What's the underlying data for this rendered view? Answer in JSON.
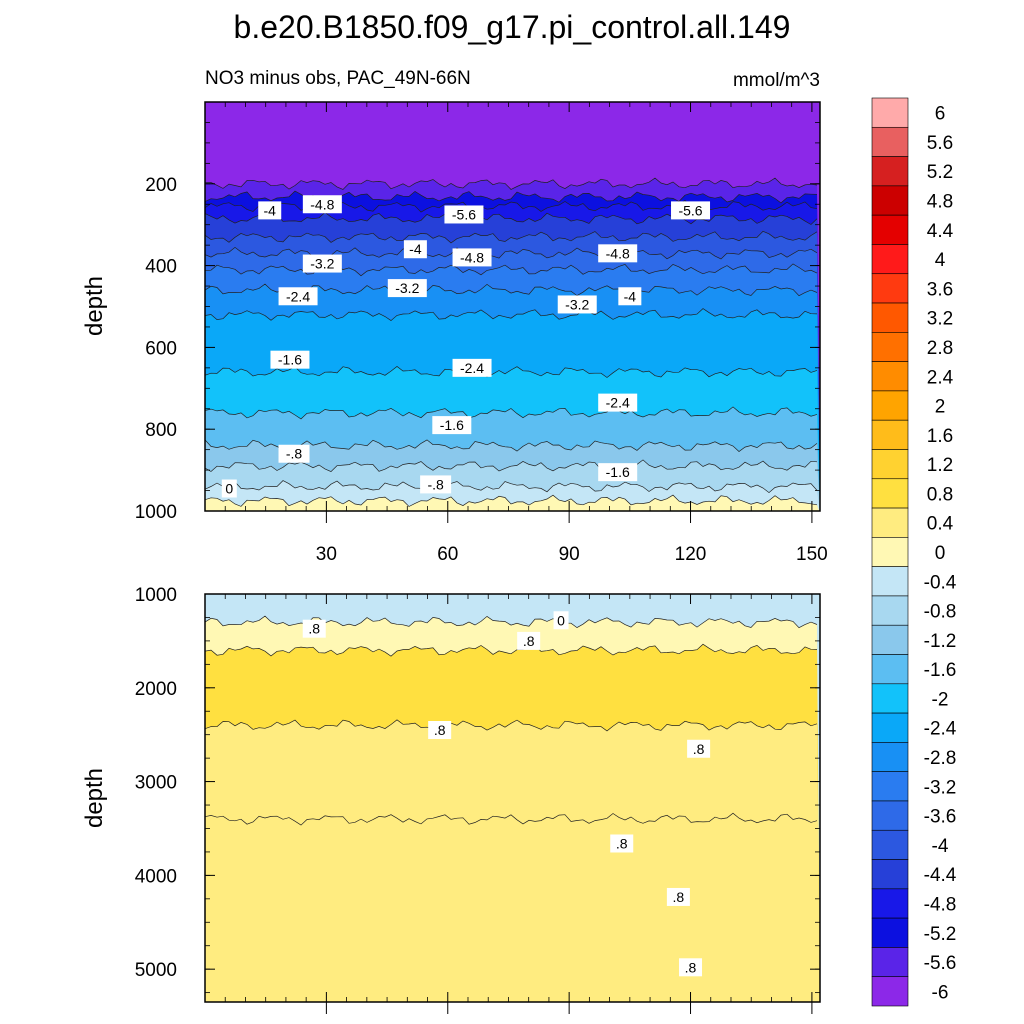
{
  "chart_data": {
    "type": "contour",
    "title": "b.e20.B1850.f09_g17.pi_control.all.149",
    "subtitle_left": "NO3 minus obs, PAC_49N-66N",
    "units": "mmol/m^3",
    "x_ticks": [
      "30",
      "60",
      "90",
      "120",
      "150"
    ],
    "xlim": [
      0,
      152
    ],
    "colorbar": {
      "labels": [
        "6",
        "5.6",
        "5.2",
        "4.8",
        "4.4",
        "4",
        "3.6",
        "3.2",
        "2.8",
        "2.4",
        "2",
        "1.6",
        "1.2",
        "0.8",
        "0.4",
        "0",
        "-0.4",
        "-0.8",
        "-1.2",
        "-1.6",
        "-2",
        "-2.4",
        "-2.8",
        "-3.2",
        "-3.6",
        "-4",
        "-4.4",
        "-4.8",
        "-5.2",
        "-5.6",
        "-6"
      ],
      "colors": [
        "#ffaaaa",
        "#e86060",
        "#d62020",
        "#cc0000",
        "#e40000",
        "#ff1a1a",
        "#ff3a10",
        "#ff5800",
        "#ff7000",
        "#ff8c00",
        "#ffa400",
        "#ffbc1a",
        "#ffd230",
        "#ffe040",
        "#ffec80",
        "#fff8b4",
        "#c4e6f6",
        "#a8d8f0",
        "#8ac8ec",
        "#5cbef2",
        "#12c2fa",
        "#0aa8f8",
        "#1890f4",
        "#2a7cf0",
        "#2e6ae8",
        "#2c58e0",
        "#2640d8",
        "#1818e8",
        "#0c10e0",
        "#5a24e8",
        "#8c28e8"
      ]
    },
    "panels": [
      {
        "name": "upper",
        "ylabel": "depth",
        "ylim": [
          0,
          1000
        ],
        "y_ticks": [
          "200",
          "400",
          "600",
          "800",
          "1000"
        ],
        "bands": [
          {
            "top": 0,
            "value": -6.0
          },
          {
            "top": 200,
            "value": -5.6
          },
          {
            "top": 232,
            "value": -5.2
          },
          {
            "top": 255,
            "value": -4.8
          },
          {
            "top": 285,
            "value": -4.4
          },
          {
            "top": 330,
            "value": -4.0
          },
          {
            "top": 370,
            "value": -3.6
          },
          {
            "top": 410,
            "value": -3.2
          },
          {
            "top": 460,
            "value": -2.8
          },
          {
            "top": 520,
            "value": -2.4
          },
          {
            "top": 660,
            "value": -2.0
          },
          {
            "top": 760,
            "value": -1.6
          },
          {
            "top": 840,
            "value": -1.2
          },
          {
            "top": 890,
            "value": -0.8
          },
          {
            "top": 940,
            "value": -0.4
          },
          {
            "top": 975,
            "value": 0.0
          }
        ],
        "contour_labels": [
          {
            "text": "-4",
            "x": 16,
            "y": 265
          },
          {
            "text": "-4.8",
            "x": 29,
            "y": 250
          },
          {
            "text": "-5.6",
            "x": 64,
            "y": 275
          },
          {
            "text": "-5.6",
            "x": 120,
            "y": 265
          },
          {
            "text": "-4",
            "x": 52,
            "y": 360
          },
          {
            "text": "-4.8",
            "x": 66,
            "y": 380
          },
          {
            "text": "-4.8",
            "x": 102,
            "y": 370
          },
          {
            "text": "-3.2",
            "x": 29,
            "y": 395
          },
          {
            "text": "-3.2",
            "x": 50,
            "y": 455
          },
          {
            "text": "-4",
            "x": 105,
            "y": 475
          },
          {
            "text": "-2.4",
            "x": 23,
            "y": 475
          },
          {
            "text": "-3.2",
            "x": 92,
            "y": 495
          },
          {
            "text": "-1.6",
            "x": 21,
            "y": 630
          },
          {
            "text": "-2.4",
            "x": 66,
            "y": 650
          },
          {
            "text": "-2.4",
            "x": 102,
            "y": 735
          },
          {
            "text": "-1.6",
            "x": 61,
            "y": 790
          },
          {
            "text": "-.8",
            "x": 22,
            "y": 860
          },
          {
            "text": "-.8",
            "x": 57,
            "y": 935
          },
          {
            "text": "-1.6",
            "x": 102,
            "y": 905
          },
          {
            "text": "0",
            "x": 6,
            "y": 945
          }
        ]
      },
      {
        "name": "lower",
        "ylabel": "depth",
        "ylim": [
          1000,
          5350
        ],
        "y_ticks": [
          "1000",
          "2000",
          "3000",
          "4000",
          "5000"
        ],
        "bands": [
          {
            "top": 1000,
            "value": -0.4
          },
          {
            "top": 1300,
            "value": 0.0
          },
          {
            "top": 1600,
            "value": 0.8
          },
          {
            "top": 2400,
            "value": 0.4
          },
          {
            "top": 3400,
            "value": 0.4
          }
        ],
        "contour_labels": [
          {
            "text": "0",
            "x": 88,
            "y": 1280
          },
          {
            "text": ".8",
            "x": 27,
            "y": 1370
          },
          {
            "text": ".8",
            "x": 80,
            "y": 1500
          },
          {
            "text": ".8",
            "x": 58,
            "y": 2450
          },
          {
            "text": ".8",
            "x": 122,
            "y": 2650
          },
          {
            "text": ".8",
            "x": 103,
            "y": 3660
          },
          {
            "text": ".8",
            "x": 117,
            "y": 4230
          },
          {
            "text": ".8",
            "x": 120,
            "y": 4980
          }
        ]
      }
    ]
  }
}
